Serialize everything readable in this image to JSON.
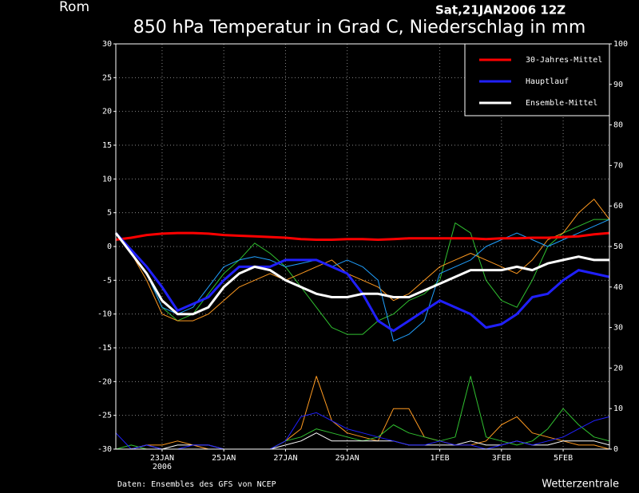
{
  "chart_data": {
    "type": "line",
    "location": "Rom",
    "run": "Sat,21JAN2006 12Z",
    "title": "850 hPa Temperatur in Grad C, Niederschlag in mm",
    "source": "Daten: Ensembles des GFS von NCEP",
    "credit": "Wetterzentrale",
    "categories": [
      null,
      null,
      null,
      "23JAN",
      null,
      null,
      null,
      "25JAN",
      null,
      null,
      null,
      "27JAN",
      null,
      null,
      null,
      "29JAN",
      null,
      null,
      null,
      null,
      null,
      "1FEB",
      null,
      null,
      null,
      "3FEB",
      null,
      null,
      null,
      "5FEB",
      null,
      null,
      null
    ],
    "year_label": "2006",
    "ylim": [
      -30,
      30
    ],
    "yticks": [
      -30,
      -25,
      -20,
      -15,
      -10,
      -5,
      0,
      5,
      10,
      15,
      20,
      25,
      30
    ],
    "y2lim": [
      0,
      100
    ],
    "y2ticks": [
      0,
      10,
      20,
      30,
      40,
      50,
      60,
      70,
      80,
      90,
      100
    ],
    "grid": true,
    "legend": "upper right",
    "series": [
      {
        "color": "#30c030",
        "values": [
          2,
          -1,
          -4,
          -9,
          -11,
          -10,
          -7,
          -4,
          -2,
          0.5,
          -1,
          -3,
          -6,
          -9,
          -12,
          -13,
          -13,
          -11,
          -10,
          -8,
          -7,
          -5,
          3.5,
          2,
          -5,
          -8,
          -9,
          -5,
          0,
          2,
          3,
          4,
          4
        ]
      },
      {
        "color": "#ff9a20",
        "values": [
          2,
          -1,
          -5,
          -10,
          -11,
          -11,
          -10,
          -8,
          -6,
          -5,
          -4,
          -5,
          -4,
          -3,
          -2,
          -4,
          -5,
          -6,
          -8,
          -7,
          -5,
          -3,
          -2,
          -1,
          -2,
          -3,
          -4,
          -2,
          1,
          2,
          5,
          7,
          4
        ]
      },
      {
        "color": "#20a0ff",
        "values": [
          2,
          -1,
          -4,
          -9,
          -10,
          -9,
          -6,
          -3,
          -2,
          -1.5,
          -2,
          -3,
          -2.5,
          -2,
          -3,
          -2,
          -3,
          -5,
          -14,
          -13,
          -11,
          -4,
          -3,
          -2,
          0,
          1,
          2,
          1,
          0,
          1,
          2,
          3,
          4
        ]
      },
      {
        "color": "#ff9a20",
        "axis": "y2",
        "values": [
          0,
          0,
          1,
          1,
          2,
          1,
          0,
          0,
          0,
          0,
          0,
          2,
          5,
          18,
          7,
          4,
          3,
          2,
          10,
          10,
          3,
          2,
          1,
          1,
          2,
          6,
          8,
          4,
          3,
          2,
          1,
          1,
          0
        ]
      },
      {
        "color": "#30c030",
        "axis": "y2",
        "values": [
          0,
          1,
          0,
          0,
          0,
          0,
          0,
          0,
          0,
          0,
          0,
          2,
          3,
          5,
          4,
          3,
          2,
          3,
          6,
          4,
          3,
          2,
          3,
          18,
          3,
          2,
          1,
          2,
          5,
          10,
          6,
          3,
          2
        ]
      },
      {
        "color": "#ffffff",
        "axis": "y2",
        "values": [
          0,
          0,
          1,
          0,
          1,
          1,
          1,
          0,
          0,
          0,
          0,
          1,
          2,
          4,
          2,
          2,
          2,
          2,
          2,
          1,
          1,
          1,
          1,
          2,
          1,
          1,
          2,
          1,
          1,
          2,
          2,
          2,
          1
        ]
      },
      {
        "color": "#2020ff",
        "axis": "y2",
        "values": [
          4,
          0,
          1,
          0,
          0,
          1,
          1,
          0,
          0,
          0,
          0,
          2,
          8,
          9,
          7,
          5,
          4,
          3,
          2,
          1,
          1,
          2,
          1,
          1,
          0,
          1,
          2,
          1,
          2,
          3,
          5,
          7,
          8
        ]
      },
      {
        "name": "30-Jahres-Mittel",
        "color": "#ff0000",
        "values": [
          1,
          1.3,
          1.7,
          1.9,
          2,
          2,
          1.9,
          1.7,
          1.6,
          1.5,
          1.4,
          1.3,
          1.1,
          1,
          1,
          1.1,
          1.1,
          1,
          1.1,
          1.2,
          1.2,
          1.2,
          1.2,
          1.2,
          1.1,
          1.2,
          1.2,
          1.3,
          1.3,
          1.4,
          1.5,
          1.8,
          2
        ]
      },
      {
        "name": "Hauptlauf",
        "color": "#2020ff",
        "values": [
          2,
          -0.5,
          -3,
          -6,
          -9.5,
          -8.5,
          -7.5,
          -5,
          -3,
          -3,
          -3,
          -2,
          -2,
          -2,
          -3,
          -4,
          -7,
          -11,
          -12.5,
          -11,
          -9.5,
          -8,
          -9,
          -10,
          -12,
          -11.5,
          -10,
          -7.5,
          -7,
          -5,
          -3.5,
          -4,
          -4.5
        ]
      },
      {
        "name": "Ensemble-Mittel",
        "color": "#ffffff",
        "values": [
          2,
          -1,
          -4,
          -8,
          -10,
          -10,
          -9,
          -6,
          -4,
          -3,
          -3.5,
          -5,
          -6,
          -7,
          -7.5,
          -7.5,
          -7,
          -7,
          -7.5,
          -7.5,
          -6.5,
          -5.5,
          -4.5,
          -3.5,
          -3.5,
          -3.5,
          -3,
          -3.5,
          -2.5,
          -2,
          -1.5,
          -2,
          -2
        ]
      }
    ]
  }
}
